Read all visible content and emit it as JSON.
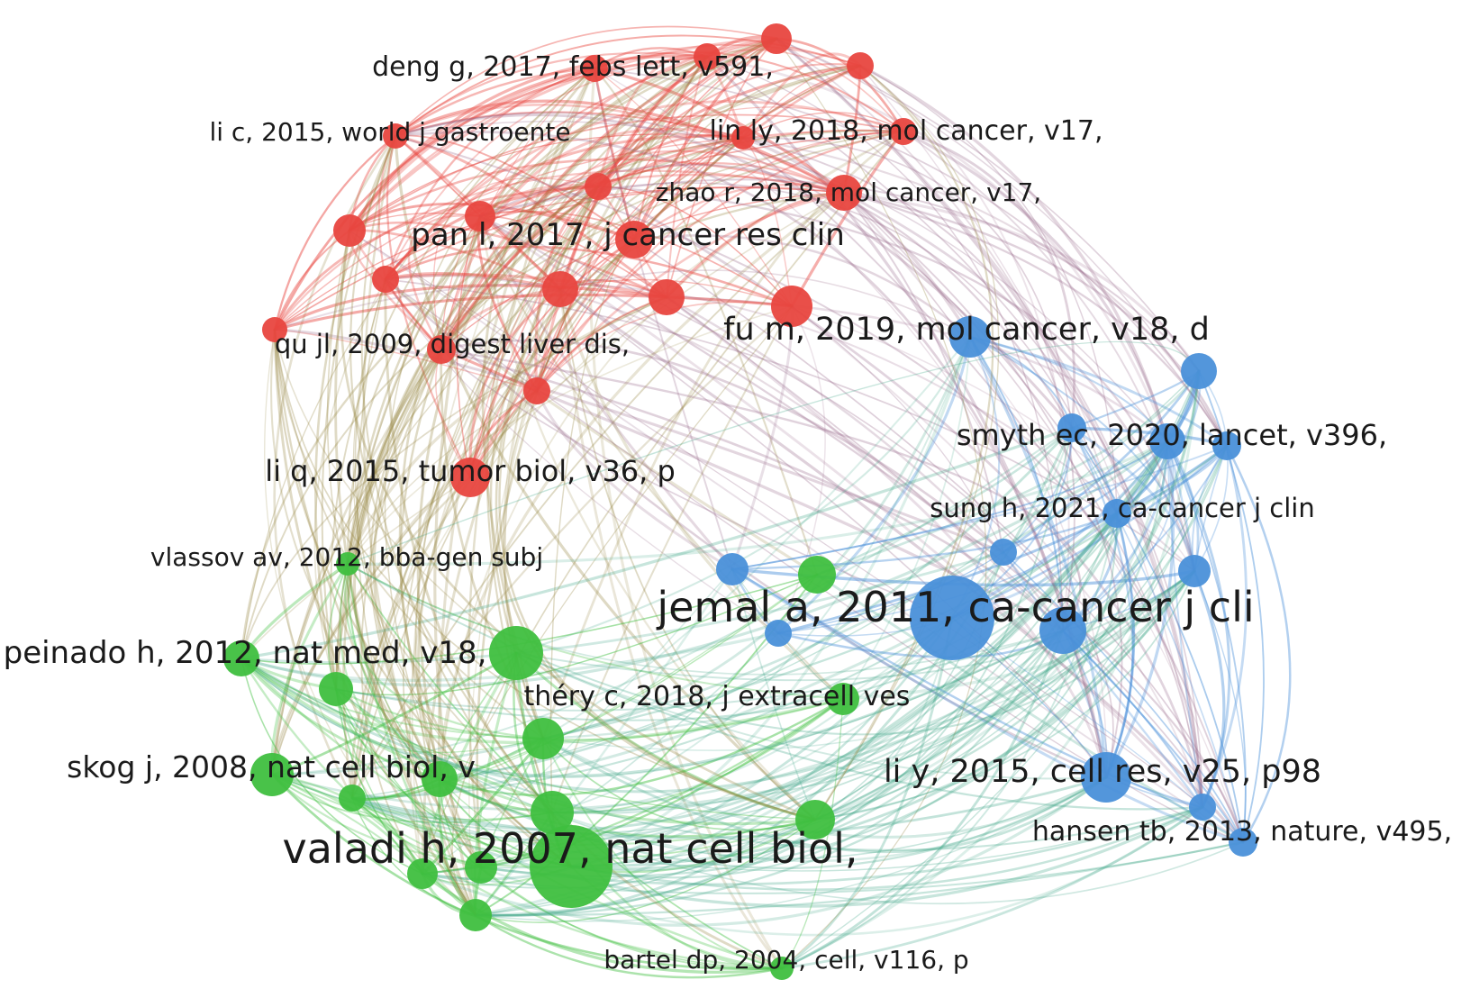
{
  "colors": {
    "cluster1": "#e8463f",
    "cluster2": "#3fbf3f",
    "cluster3": "#4a90d9"
  },
  "network": {
    "labeled_nodes": [
      {
        "id": "deng",
        "label": "deng g, 2017, febs lett, v591,",
        "cluster": 1
      },
      {
        "id": "lic",
        "label": "li c, 2015, world j gastroente",
        "cluster": 1
      },
      {
        "id": "linly",
        "label": "lin ly, 2018, mol cancer, v17,",
        "cluster": 1
      },
      {
        "id": "zhao",
        "label": "zhao r, 2018, mol cancer, v17,",
        "cluster": 1
      },
      {
        "id": "pan",
        "label": "pan l, 2017, j cancer res clin",
        "cluster": 1
      },
      {
        "id": "qu",
        "label": "qu jl, 2009, digest liver dis,",
        "cluster": 1
      },
      {
        "id": "liq",
        "label": "li q, 2015, tumor biol, v36, p",
        "cluster": 1
      },
      {
        "id": "fum",
        "label": "fu m, 2019, mol cancer, v18, d",
        "cluster": 3
      },
      {
        "id": "smyth",
        "label": "smyth ec, 2020, lancet, v396,",
        "cluster": 3
      },
      {
        "id": "sung",
        "label": "sung h, 2021, ca-cancer j clin",
        "cluster": 3
      },
      {
        "id": "vlassov",
        "label": "vlassov av, 2012, bba-gen subj",
        "cluster": 2
      },
      {
        "id": "jemal",
        "label": "jemal a, 2011, ca-cancer j cli",
        "cluster": 3
      },
      {
        "id": "peinado",
        "label": "peinado h, 2012, nat med, v18,",
        "cluster": 2
      },
      {
        "id": "thery",
        "label": "théry c, 2018, j extracell ves",
        "cluster": 2
      },
      {
        "id": "skog",
        "label": "skog j, 2008, nat cell biol, v",
        "cluster": 2
      },
      {
        "id": "liy",
        "label": "li y, 2015, cell res, v25, p98",
        "cluster": 3
      },
      {
        "id": "hansen",
        "label": "hansen tb, 2013, nature, v495,",
        "cluster": 3
      },
      {
        "id": "valadi",
        "label": "valadi h, 2007, nat cell biol,",
        "cluster": 2
      },
      {
        "id": "bartel",
        "label": "bartel dp, 2004, cell, v116, p",
        "cluster": 2
      }
    ]
  }
}
